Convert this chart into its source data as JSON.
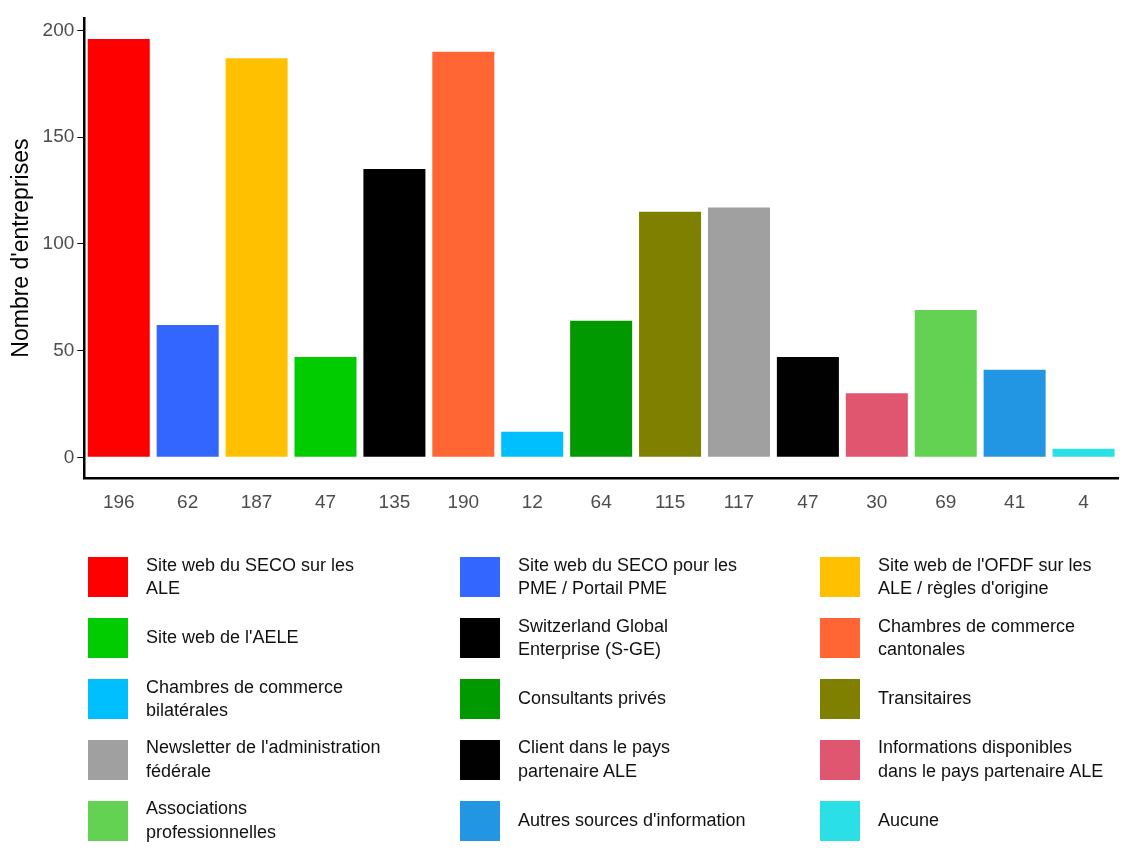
{
  "chart_data": {
    "type": "bar",
    "ylabel": "Nombre d'entreprises",
    "categories": [
      "196",
      "62",
      "187",
      "47",
      "135",
      "190",
      "12",
      "64",
      "115",
      "117",
      "47",
      "30",
      "69",
      "41",
      "4"
    ],
    "series": [
      {
        "name": "Site web du SECO sur les ALE",
        "color": "#ff0000",
        "values": [
          196,
          null,
          null,
          null,
          null,
          null,
          null,
          null,
          null,
          null,
          null,
          null,
          null,
          null,
          null
        ]
      },
      {
        "name": "Site web du SECO pour les PME / Portail PME",
        "color": "#3366ff",
        "values": [
          null,
          62,
          null,
          null,
          null,
          null,
          null,
          null,
          null,
          null,
          null,
          null,
          null,
          null,
          null
        ]
      },
      {
        "name": "Site web de l'OFDF sur les ALE / règles d'origine",
        "color": "#ffc000",
        "values": [
          null,
          null,
          187,
          null,
          null,
          null,
          null,
          null,
          null,
          null,
          null,
          null,
          null,
          null,
          null
        ]
      },
      {
        "name": "Site web de l'AELE",
        "color": "#00cc00",
        "values": [
          null,
          null,
          null,
          47,
          null,
          null,
          null,
          null,
          null,
          null,
          null,
          null,
          null,
          null,
          null
        ]
      },
      {
        "name": "Switzerland Global Enterprise (S-GE)",
        "color": "#000000",
        "values": [
          null,
          null,
          null,
          null,
          135,
          null,
          null,
          null,
          null,
          null,
          null,
          null,
          null,
          null,
          null
        ]
      },
      {
        "name": "Chambres de commerce cantonales",
        "color": "#ff6633",
        "values": [
          null,
          null,
          null,
          null,
          null,
          190,
          null,
          null,
          null,
          null,
          null,
          null,
          null,
          null,
          null
        ]
      },
      {
        "name": "Chambres de commerce bilatérales",
        "color": "#00bfff",
        "values": [
          null,
          null,
          null,
          null,
          null,
          null,
          12,
          null,
          null,
          null,
          null,
          null,
          null,
          null,
          null
        ]
      },
      {
        "name": "Consultants privés",
        "color": "#009900",
        "values": [
          null,
          null,
          null,
          null,
          null,
          null,
          null,
          64,
          null,
          null,
          null,
          null,
          null,
          null,
          null
        ]
      },
      {
        "name": "Transitaires",
        "color": "#808000",
        "values": [
          null,
          null,
          null,
          null,
          null,
          null,
          null,
          null,
          115,
          null,
          null,
          null,
          null,
          null,
          null
        ]
      },
      {
        "name": "Newsletter de l'administration fédérale",
        "color": "#a0a0a0",
        "values": [
          null,
          null,
          null,
          null,
          null,
          null,
          null,
          null,
          null,
          117,
          null,
          null,
          null,
          null,
          null
        ]
      },
      {
        "name": "Client dans le pays partenaire ALE",
        "color": "#010101",
        "values": [
          null,
          null,
          null,
          null,
          null,
          null,
          null,
          null,
          null,
          null,
          47,
          null,
          null,
          null,
          null
        ]
      },
      {
        "name": "Informations disponibles dans le pays partenaire ALE",
        "color": "#e0566e",
        "values": [
          null,
          null,
          null,
          null,
          null,
          null,
          null,
          null,
          null,
          null,
          null,
          30,
          null,
          null,
          null
        ]
      },
      {
        "name": "Associations professionnelles",
        "color": "#63d152",
        "values": [
          null,
          null,
          null,
          null,
          null,
          null,
          null,
          null,
          null,
          null,
          null,
          null,
          69,
          null,
          null
        ]
      },
      {
        "name": "Autres sources d'information",
        "color": "#2396e3",
        "values": [
          null,
          null,
          null,
          null,
          null,
          null,
          null,
          null,
          null,
          null,
          null,
          null,
          null,
          41,
          null
        ]
      },
      {
        "name": "Aucune",
        "color": "#2ae0e6",
        "values": [
          null,
          null,
          null,
          null,
          null,
          null,
          null,
          null,
          null,
          null,
          null,
          null,
          null,
          null,
          4
        ]
      }
    ],
    "ylim": [
      -9.8,
      205.8
    ],
    "yticks": [
      0,
      50,
      100,
      150,
      200
    ],
    "grid": false,
    "legend": "bottom"
  }
}
